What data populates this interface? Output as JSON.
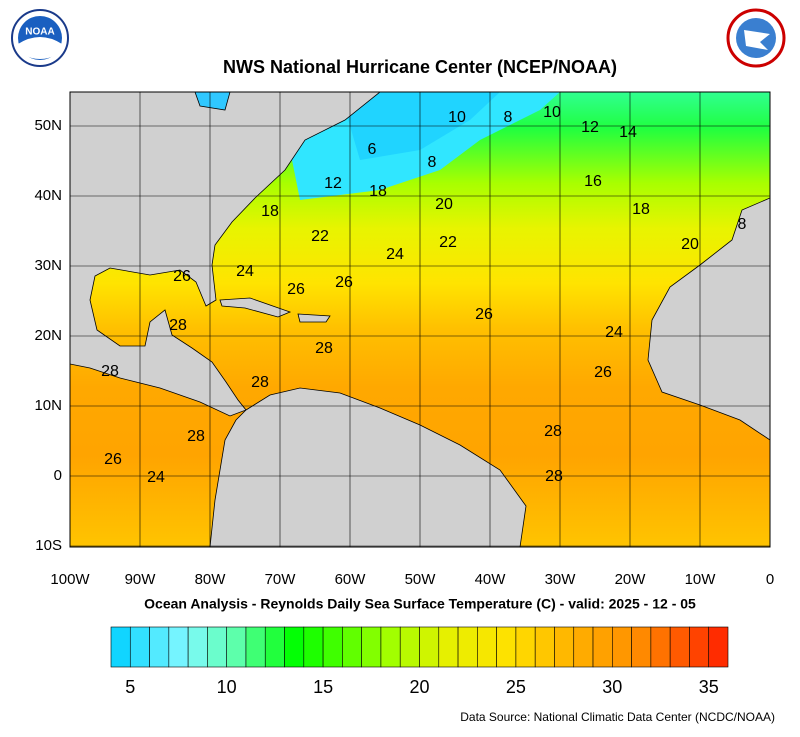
{
  "header": {
    "title": "NWS National Hurricane Center (NCEP/NOAA)",
    "noaa_logo": "NOAA"
  },
  "map": {
    "lat_labels": [
      "50N",
      "40N",
      "30N",
      "20N",
      "10N",
      "0",
      "10S"
    ],
    "lon_labels": [
      "100W",
      "90W",
      "80W",
      "70W",
      "60W",
      "50W",
      "40W",
      "30W",
      "20W",
      "10W",
      "0"
    ],
    "contour_labels": [
      "10",
      "8",
      "10",
      "12",
      "14",
      "6",
      "8",
      "12",
      "18",
      "20",
      "16",
      "18",
      "18",
      "22",
      "24",
      "22",
      "20",
      "8",
      "24",
      "26",
      "26",
      "26",
      "26",
      "24",
      "28",
      "28",
      "28",
      "28",
      "26",
      "28",
      "28",
      "26",
      "24",
      "28"
    ]
  },
  "subtitle": "Ocean Analysis - Reynolds Daily Sea Surface Temperature (C) - valid: 2025 - 12 - 05",
  "colorbar": {
    "ticks": [
      5,
      10,
      15,
      20,
      25,
      30,
      35
    ]
  },
  "footer": "Data Source: National Climatic Data Center (NCDC/NOAA)"
}
